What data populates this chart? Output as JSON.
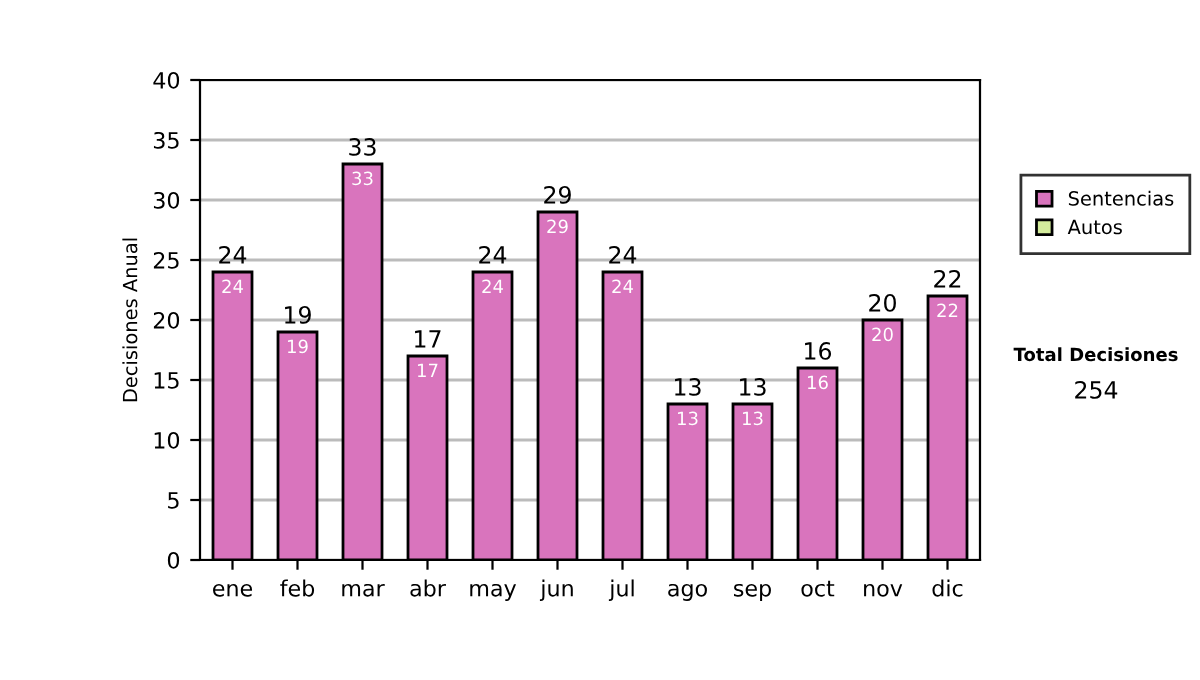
{
  "chart_data": {
    "type": "bar",
    "stacked": true,
    "ylabel": "Decisiones Anual",
    "categories": [
      "ene",
      "feb",
      "mar",
      "abr",
      "may",
      "jun",
      "jul",
      "ago",
      "sep",
      "oct",
      "nov",
      "dic"
    ],
    "series": [
      {
        "name": "Sentencias",
        "color": "#d974bd",
        "values": [
          24,
          19,
          33,
          17,
          24,
          29,
          24,
          13,
          13,
          16,
          20,
          22
        ],
        "value_labels": [
          "24",
          "19",
          "33",
          "17",
          "24",
          "29",
          "24",
          "13",
          "13",
          "16",
          "20",
          "22"
        ]
      },
      {
        "name": "Autos",
        "color": "#d4ec9c",
        "values": [
          0,
          0,
          0,
          0,
          0,
          0,
          0,
          0,
          0,
          0,
          0,
          0
        ]
      }
    ],
    "totals": [
      "24",
      "19",
      "33",
      "17",
      "24",
      "29",
      "24",
      "13",
      "13",
      "16",
      "20",
      "22"
    ],
    "ylim": [
      0,
      40
    ],
    "yticks": [
      0,
      5,
      10,
      15,
      20,
      25,
      30,
      35,
      40
    ],
    "grid": "y",
    "legend": "right",
    "annotations": [
      "Total Decisiones",
      "254"
    ]
  }
}
